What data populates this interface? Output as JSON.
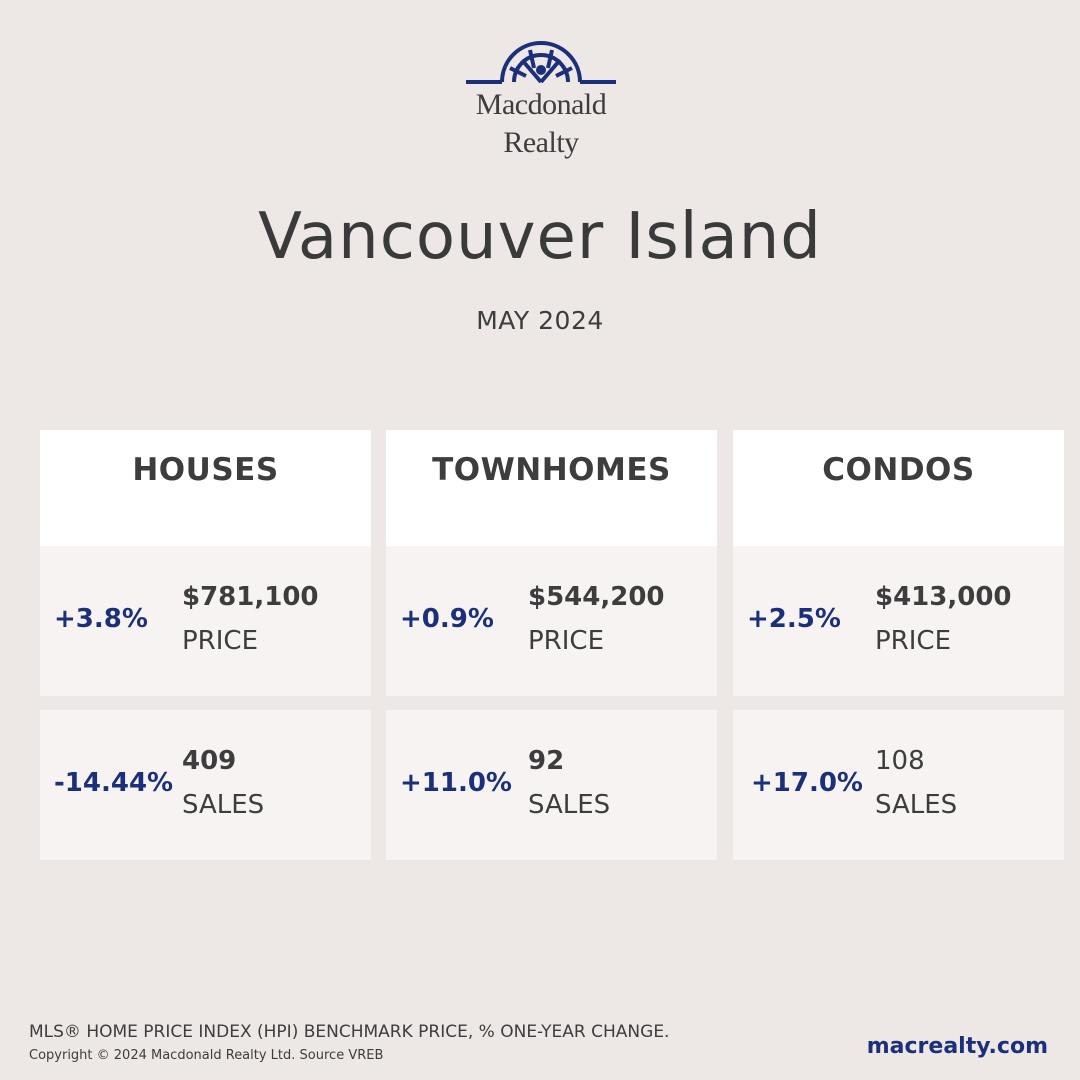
{
  "logo": {
    "line1": "Macdonald",
    "line2": "Realty",
    "color": "#1b2f7a"
  },
  "title": "Vancouver Island",
  "subtitle": "MAY 2024",
  "categories": [
    {
      "name": "HOUSES",
      "price": {
        "change": "+3.8%",
        "value": "$781,100",
        "label": "PRICE"
      },
      "sales": {
        "change": "-14.44%",
        "value": "409",
        "label": "SALES"
      }
    },
    {
      "name": "TOWNHOMES",
      "price": {
        "change": "+0.9%",
        "value": "$544,200",
        "label": "PRICE"
      },
      "sales": {
        "change": "+11.0%",
        "value": "92",
        "label": "SALES"
      }
    },
    {
      "name": "CONDOS",
      "price": {
        "change": "+2.5%",
        "value": "$413,000",
        "label": "PRICE"
      },
      "sales": {
        "change": "+17.0%",
        "value": "108",
        "label": "SALES"
      }
    }
  ],
  "footer": {
    "note": "MLS® HOME PRICE INDEX (HPI) BENCHMARK PRICE, % ONE-YEAR CHANGE.",
    "copyright": "Copyright © 2024 Macdonald Realty Ltd. Source VREB",
    "url": "macrealty.com"
  },
  "colors": {
    "background": "#ede8e5",
    "accent": "#1b2f7a",
    "card": "#f6f3f2",
    "header": "#ffffff"
  }
}
